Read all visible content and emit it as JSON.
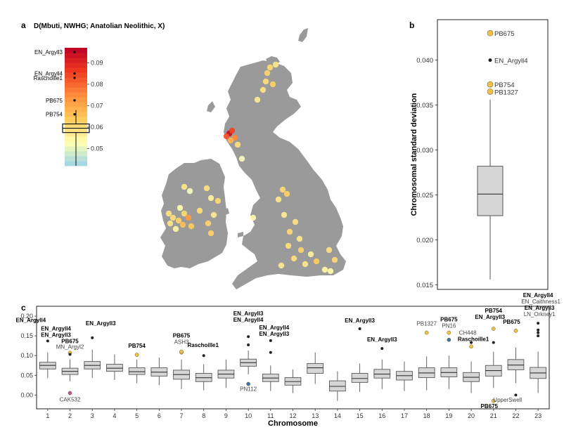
{
  "panels": {
    "a": "a",
    "b": "b",
    "c": "c"
  },
  "chart_data": [
    {
      "type": "map",
      "title": "D(Mbuti, NWHG; Anatolian Neolithic, X)",
      "colorbar": {
        "ticks": [
          0.05,
          0.06,
          0.07,
          0.08,
          0.09
        ],
        "range": [
          0.042,
          0.097
        ],
        "colors": [
          "#9bd4e6",
          "#ffffb2",
          "#fecc5c",
          "#fd8d3c",
          "#f03b20",
          "#bd0026"
        ],
        "labeled_points": [
          {
            "label": "EN_Argyll3",
            "value": 0.095
          },
          {
            "label": "EN_Argyll4",
            "value": 0.085
          },
          {
            "label": "Raschoille1",
            "value": 0.083
          },
          {
            "label": "PB675",
            "value": 0.0725
          },
          {
            "label": "PB754",
            "value": 0.066
          }
        ],
        "box": {
          "q1": 0.0575,
          "median": 0.0595,
          "q3": 0.0615,
          "whisker_low": 0.042,
          "whisker_high": 0.068
        }
      },
      "land_color": "#9a9a9a",
      "sample_points": [
        {
          "region": "Orkney",
          "value": 0.061
        },
        {
          "region": "Orkney",
          "value": 0.058
        },
        {
          "region": "Orkney",
          "value": 0.062
        },
        {
          "region": "Caithness",
          "value": 0.06
        },
        {
          "region": "Caithness",
          "value": 0.063
        },
        {
          "region": "Caithness",
          "value": 0.059
        },
        {
          "region": "NE Scotland",
          "value": 0.057
        },
        {
          "region": "Argyll",
          "value": 0.095
        },
        {
          "region": "Argyll",
          "value": 0.085
        },
        {
          "region": "Argyll",
          "value": 0.083
        },
        {
          "region": "Argyll",
          "value": 0.075
        },
        {
          "region": "Argyll",
          "value": 0.068
        },
        {
          "region": "Argyll",
          "value": 0.06
        },
        {
          "region": "SW Scotland",
          "value": 0.052
        },
        {
          "region": "Ireland north",
          "value": 0.058
        },
        {
          "region": "Ireland north",
          "value": 0.052
        },
        {
          "region": "Ireland north",
          "value": 0.059
        },
        {
          "region": "Ireland north",
          "value": 0.056
        },
        {
          "region": "Ireland north",
          "value": 0.061
        },
        {
          "region": "Ireland west",
          "value": 0.06
        },
        {
          "region": "Ireland west",
          "value": 0.063
        },
        {
          "region": "Ireland west",
          "value": 0.066
        },
        {
          "region": "Ireland west",
          "value": 0.0725
        },
        {
          "region": "Ireland west",
          "value": 0.058
        },
        {
          "region": "Ireland west",
          "value": 0.055
        },
        {
          "region": "Ireland west",
          "value": 0.061
        },
        {
          "region": "Ireland west",
          "value": 0.064
        },
        {
          "region": "Ireland west",
          "value": 0.059
        },
        {
          "region": "Ireland west",
          "value": 0.053
        },
        {
          "region": "Ireland central",
          "value": 0.06
        },
        {
          "region": "Ireland east",
          "value": 0.062
        },
        {
          "region": "Ireland east",
          "value": 0.057
        },
        {
          "region": "Ireland east",
          "value": 0.063
        },
        {
          "region": "N England",
          "value": 0.061
        },
        {
          "region": "N England",
          "value": 0.063
        },
        {
          "region": "N England",
          "value": 0.058
        },
        {
          "region": "Wales",
          "value": 0.054
        },
        {
          "region": "Midlands",
          "value": 0.057
        },
        {
          "region": "Midlands",
          "value": 0.059
        },
        {
          "region": "Midlands",
          "value": 0.061
        },
        {
          "region": "Midlands",
          "value": 0.058
        },
        {
          "region": "S England",
          "value": 0.06
        },
        {
          "region": "S England",
          "value": 0.062
        },
        {
          "region": "S England",
          "value": 0.056
        },
        {
          "region": "S England",
          "value": 0.064
        },
        {
          "region": "S England",
          "value": 0.058
        },
        {
          "region": "S England",
          "value": 0.06
        },
        {
          "region": "S England",
          "value": 0.057
        },
        {
          "region": "S England",
          "value": 0.055
        },
        {
          "region": "SE England",
          "value": 0.059
        },
        {
          "region": "SE England",
          "value": 0.061
        },
        {
          "region": "SE England",
          "value": 0.054
        }
      ]
    },
    {
      "type": "box",
      "ylabel": "Chromosomal standard deviation",
      "ylim": [
        0.0145,
        0.0445
      ],
      "yticks": [
        0.015,
        0.02,
        0.025,
        0.03,
        0.035,
        0.04
      ],
      "ytick_labels": [
        "0.015",
        "0.020",
        "0.025",
        "0.030",
        "0.035",
        "0.040"
      ],
      "box": {
        "q1": 0.0227,
        "median": 0.0251,
        "q3": 0.0282,
        "whisker_low": 0.0156,
        "whisker_high": 0.0356
      },
      "outliers": [
        {
          "label": "PB675",
          "value": 0.043,
          "color": "#f0c24a"
        },
        {
          "label": "EN_Argyll4",
          "value": 0.04,
          "color": "#222222"
        },
        {
          "label": "PB754",
          "value": 0.0373,
          "color": "#f0c24a"
        },
        {
          "label": "PB1327",
          "value": 0.0365,
          "color": "#f0c24a"
        }
      ]
    },
    {
      "type": "box",
      "xlabel": "Chromosome",
      "ylim": [
        -0.035,
        0.225
      ],
      "yticks": [
        0.0,
        0.05,
        0.1,
        0.15,
        0.2
      ],
      "ytick_labels": [
        "0.00",
        "0.05",
        "0.10",
        "0.15",
        "0.20"
      ],
      "categories": [
        "1",
        "2",
        "3",
        "4",
        "5",
        "6",
        "7",
        "8",
        "9",
        "10",
        "11",
        "12",
        "13",
        "14",
        "15",
        "16",
        "17",
        "18",
        "19",
        "20",
        "21",
        "22",
        "23"
      ],
      "boxes": [
        {
          "q1": 0.066,
          "median": 0.075,
          "q3": 0.083,
          "low": 0.043,
          "high": 0.108
        },
        {
          "q1": 0.052,
          "median": 0.06,
          "q3": 0.068,
          "low": 0.035,
          "high": 0.09
        },
        {
          "q1": 0.066,
          "median": 0.075,
          "q3": 0.085,
          "low": 0.043,
          "high": 0.115
        },
        {
          "q1": 0.06,
          "median": 0.068,
          "q3": 0.078,
          "low": 0.038,
          "high": 0.103
        },
        {
          "q1": 0.052,
          "median": 0.059,
          "q3": 0.069,
          "low": 0.03,
          "high": 0.09
        },
        {
          "q1": 0.048,
          "median": 0.058,
          "q3": 0.069,
          "low": 0.025,
          "high": 0.095
        },
        {
          "q1": 0.04,
          "median": 0.052,
          "q3": 0.063,
          "low": 0.015,
          "high": 0.09
        },
        {
          "q1": 0.034,
          "median": 0.044,
          "q3": 0.055,
          "low": 0.012,
          "high": 0.078
        },
        {
          "q1": 0.043,
          "median": 0.053,
          "q3": 0.063,
          "low": 0.018,
          "high": 0.09
        },
        {
          "q1": 0.073,
          "median": 0.082,
          "q3": 0.091,
          "low": 0.052,
          "high": 0.113
        },
        {
          "q1": 0.034,
          "median": 0.043,
          "q3": 0.053,
          "low": 0.01,
          "high": 0.075
        },
        {
          "q1": 0.025,
          "median": 0.034,
          "q3": 0.044,
          "low": 0.005,
          "high": 0.065
        },
        {
          "q1": 0.055,
          "median": 0.069,
          "q3": 0.08,
          "low": 0.028,
          "high": 0.108
        },
        {
          "q1": 0.01,
          "median": 0.022,
          "q3": 0.036,
          "low": -0.015,
          "high": 0.06
        },
        {
          "q1": 0.032,
          "median": 0.042,
          "q3": 0.055,
          "low": 0.008,
          "high": 0.08
        },
        {
          "q1": 0.043,
          "median": 0.053,
          "q3": 0.065,
          "low": 0.015,
          "high": 0.09
        },
        {
          "q1": 0.038,
          "median": 0.049,
          "q3": 0.06,
          "low": 0.01,
          "high": 0.085
        },
        {
          "q1": 0.044,
          "median": 0.056,
          "q3": 0.069,
          "low": 0.012,
          "high": 0.098
        },
        {
          "q1": 0.046,
          "median": 0.057,
          "q3": 0.069,
          "low": 0.015,
          "high": 0.1
        },
        {
          "q1": 0.034,
          "median": 0.045,
          "q3": 0.057,
          "low": 0.005,
          "high": 0.085
        },
        {
          "q1": 0.048,
          "median": 0.062,
          "q3": 0.075,
          "low": 0.018,
          "high": 0.11
        },
        {
          "q1": 0.064,
          "median": 0.076,
          "q3": 0.09,
          "low": 0.03,
          "high": 0.12
        },
        {
          "q1": 0.042,
          "median": 0.056,
          "q3": 0.07,
          "low": 0.005,
          "high": 0.11
        }
      ],
      "outliers": [
        {
          "chromosome": 1,
          "value": 0.137,
          "color": "#222222",
          "labels": [
            {
              "text": "EN_Argyll4",
              "bold": true,
              "dx": -24,
              "dy": -27
            }
          ]
        },
        {
          "chromosome": 2,
          "value": 0.107,
          "color": "#f0c24a",
          "labels": [
            {
              "text": "EN_Argyll4",
              "bold": true,
              "dx": -20,
              "dy": -32
            },
            {
              "text": "EN_Argyll3",
              "bold": true,
              "dx": -20,
              "dy": -23
            },
            {
              "text": "PB675",
              "bold": true,
              "dx": 0,
              "dy": -14
            },
            {
              "text": "MN_Argyl2",
              "bold": false,
              "dx": 0,
              "dy": -6
            }
          ]
        },
        {
          "chromosome": 2,
          "value": 0.103,
          "color": "#222222",
          "labels": []
        },
        {
          "chromosome": 2,
          "value": 0.005,
          "color": "#c0569e",
          "labels": [
            {
              "text": "CAK532",
              "bold": false,
              "dx": 0,
              "dy": 12
            }
          ]
        },
        {
          "chromosome": 3,
          "value": 0.145,
          "color": "#222222",
          "labels": [
            {
              "text": "EN_Argyll3",
              "bold": true,
              "dx": 12,
              "dy": -18
            }
          ]
        },
        {
          "chromosome": 5,
          "value": 0.102,
          "color": "#f0c24a",
          "labels": [
            {
              "text": "PB754",
              "bold": true,
              "dx": 0,
              "dy": -10
            }
          ]
        },
        {
          "chromosome": 7,
          "value": 0.108,
          "color": "#f0c24a",
          "labels": [
            {
              "text": "PB675",
              "bold": true,
              "dx": 0,
              "dy": -21
            },
            {
              "text": "ASH3",
              "bold": false,
              "dx": 0,
              "dy": -12
            }
          ]
        },
        {
          "chromosome": 7,
          "value": 0.11,
          "color": "#f0c24a",
          "labels": []
        },
        {
          "chromosome": 8,
          "value": 0.1,
          "color": "#222222",
          "labels": [
            {
              "text": "Raschoille1",
              "bold": true,
              "dx": -1,
              "dy": -12
            }
          ]
        },
        {
          "chromosome": 10,
          "value": 0.148,
          "color": "#222222",
          "labels": [
            {
              "text": "EN_Argyll3",
              "bold": true,
              "dx": 0,
              "dy": -30
            },
            {
              "text": "EN_Argyll4",
              "bold": true,
              "dx": 0,
              "dy": -21
            }
          ]
        },
        {
          "chromosome": 10,
          "value": 0.127,
          "color": "#222222",
          "labels": []
        },
        {
          "chromosome": 10,
          "value": 0.028,
          "color": "#3a75b0",
          "labels": [
            {
              "text": "PN112",
              "bold": false,
              "dx": 0,
              "dy": 10
            }
          ]
        },
        {
          "chromosome": 11,
          "value": 0.138,
          "color": "#222222",
          "labels": [
            {
              "text": "EN_Argyll4",
              "bold": true,
              "dx": 5,
              "dy": -16
            },
            {
              "text": "EN_Argyll3",
              "bold": true,
              "dx": 5,
              "dy": -7
            }
          ]
        },
        {
          "chromosome": 11,
          "value": 0.108,
          "color": "#222222",
          "labels": []
        },
        {
          "chromosome": 15,
          "value": 0.168,
          "color": "#222222",
          "labels": [
            {
              "text": "EN_Argyll3",
              "bold": true,
              "dx": 0,
              "dy": -9
            }
          ]
        },
        {
          "chromosome": 16,
          "value": 0.118,
          "color": "#222222",
          "labels": [
            {
              "text": "EN_Argyll3",
              "bold": true,
              "dx": 0,
              "dy": -10
            }
          ]
        },
        {
          "chromosome": 18,
          "value": 0.158,
          "color": "#f0c24a",
          "labels": [
            {
              "text": "PB1327",
              "bold": false,
              "dx": 0,
              "dy": -10
            }
          ]
        },
        {
          "chromosome": 19,
          "value": 0.158,
          "color": "#f0c24a",
          "labels": [
            {
              "text": "PB675",
              "bold": true,
              "dx": 0,
              "dy": -16
            },
            {
              "text": "PN16",
              "bold": false,
              "dx": 0,
              "dy": -7
            }
          ]
        },
        {
          "chromosome": 19,
          "value": 0.14,
          "color": "#3a75b0",
          "labels": []
        },
        {
          "chromosome": 20,
          "value": 0.123,
          "color": "#f0c24a",
          "labels": [
            {
              "text": "CH448",
              "bold": false,
              "dx": -5,
              "dy": -17
            },
            {
              "text": "Raschoille1",
              "bold": true,
              "dx": 3,
              "dy": -8
            }
          ]
        },
        {
          "chromosome": 20,
          "value": 0.133,
          "color": "#222222",
          "labels": []
        },
        {
          "chromosome": 21,
          "value": 0.168,
          "color": "#f0c24a",
          "labels": [
            {
              "text": "PB754",
              "bold": true,
              "dx": 0,
              "dy": -23
            },
            {
              "text": "EN_Argyll3",
              "bold": true,
              "dx": -5,
              "dy": -14
            }
          ]
        },
        {
          "chromosome": 21,
          "value": 0.133,
          "color": "#222222",
          "labels": []
        },
        {
          "chromosome": 21,
          "value": -0.015,
          "color": "#f0c24a",
          "labels": [
            {
              "text": "UpperSwell",
              "bold": false,
              "dx": 20,
              "dy": 1
            },
            {
              "text": "PB675",
              "bold": true,
              "dx": -6,
              "dy": 10
            }
          ]
        },
        {
          "chromosome": 22,
          "value": 0.163,
          "color": "#f0c24a",
          "labels": [
            {
              "text": "PB675",
              "bold": true,
              "dx": -6,
              "dy": -10
            }
          ]
        },
        {
          "chromosome": 22,
          "value": 0.0,
          "color": "#222222",
          "labels": []
        },
        {
          "chromosome": 23,
          "value": 0.182,
          "color": "#222222",
          "labels": [
            {
              "text": "EN_Argyll4",
              "bold": true,
              "dx": 0,
              "dy": -37
            },
            {
              "text": "EN_Caithness1",
              "bold": false,
              "dx": 4,
              "dy": -28
            },
            {
              "text": "EN_Argyll3",
              "bold": true,
              "dx": 2,
              "dy": -19
            },
            {
              "text": "LN_Orkney1",
              "bold": false,
              "dx": 2,
              "dy": -10
            }
          ]
        },
        {
          "chromosome": 23,
          "value": 0.165,
          "color": "#222222",
          "labels": []
        },
        {
          "chromosome": 23,
          "value": 0.158,
          "color": "#222222",
          "labels": []
        },
        {
          "chromosome": 23,
          "value": 0.15,
          "color": "#222222",
          "labels": []
        }
      ]
    }
  ]
}
